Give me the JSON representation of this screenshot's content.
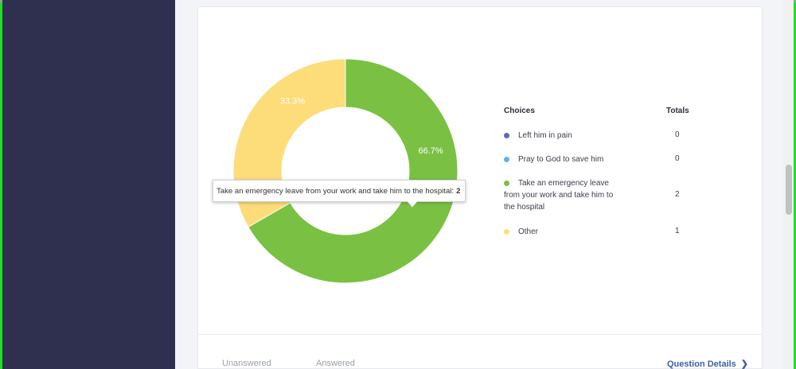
{
  "colors": {
    "sidebar": "#2f3050",
    "green": "#7ac143",
    "yellow": "#fddc7a",
    "darkblue": "#5a6fa6",
    "lightblue": "#62b3e0",
    "link": "#3f5fa7"
  },
  "legend": {
    "choices_header": "Choices",
    "totals_header": "Totals"
  },
  "chart_data": {
    "type": "pie",
    "style": "donut",
    "categories": [
      "Left him in pain",
      "Pray to God to save him",
      "Take an emergency leave from your work and take him to the hospital",
      "Other"
    ],
    "values": [
      0,
      0,
      2,
      1
    ],
    "colors": [
      "#5a6fa6",
      "#62b3e0",
      "#7ac143",
      "#fddc7a"
    ],
    "slice_labels": [
      "",
      "",
      "66.7%",
      "33.3%"
    ],
    "legend_placement": "right",
    "tooltip": {
      "label": "Take an emergency leave from your work and take him to the hospital:",
      "value": "2"
    }
  },
  "footer": {
    "tabs": [
      "Unanswered",
      "Answered"
    ],
    "details_label": "Question Details",
    "details_icon": "chevron-right-icon"
  }
}
